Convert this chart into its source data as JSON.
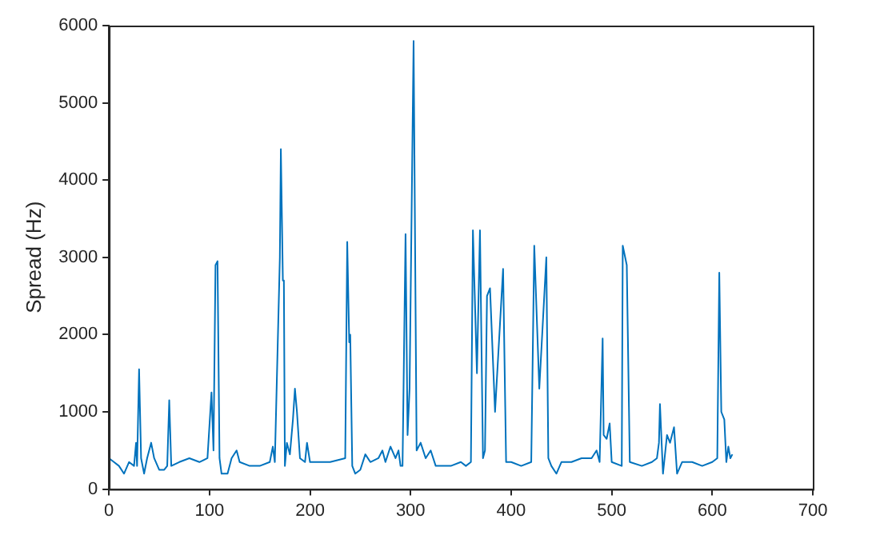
{
  "chart_data": {
    "type": "line",
    "ylabel": "Spread (Hz)",
    "x": [
      0,
      5,
      10,
      15,
      20,
      25,
      27,
      28,
      30,
      32,
      35,
      38,
      42,
      45,
      50,
      55,
      58,
      60,
      62,
      70,
      80,
      90,
      98,
      102,
      104,
      106,
      108,
      110,
      112,
      118,
      122,
      127,
      130,
      140,
      150,
      160,
      163,
      165,
      170,
      171,
      173,
      174,
      175,
      177,
      180,
      183,
      185,
      187,
      190,
      195,
      197,
      200,
      220,
      235,
      237,
      239,
      240,
      242,
      245,
      250,
      255,
      260,
      268,
      272,
      275,
      280,
      285,
      288,
      290,
      292,
      295,
      297,
      299,
      303,
      306,
      310,
      315,
      320,
      325,
      340,
      350,
      355,
      360,
      362,
      366,
      369,
      372,
      374,
      376,
      379,
      384,
      392,
      395,
      400,
      410,
      420,
      423,
      428,
      435,
      437,
      440,
      445,
      450,
      460,
      470,
      480,
      485,
      488,
      491,
      492,
      495,
      498,
      500,
      510,
      511,
      515,
      518,
      530,
      540,
      545,
      547,
      548,
      551,
      555,
      558,
      562,
      565,
      570,
      580,
      590,
      600,
      605,
      607,
      609,
      612,
      614,
      616,
      618,
      620
    ],
    "series": [
      {
        "color": "#0072bd",
        "values": [
          400,
          350,
          300,
          200,
          350,
          300,
          600,
          300,
          1550,
          400,
          200,
          400,
          600,
          400,
          250,
          250,
          300,
          1150,
          300,
          350,
          400,
          350,
          400,
          1250,
          500,
          2900,
          2950,
          400,
          200,
          200,
          400,
          500,
          350,
          300,
          300,
          350,
          550,
          350,
          3000,
          4400,
          2700,
          2700,
          300,
          600,
          450,
          900,
          1300,
          1000,
          400,
          350,
          600,
          350,
          350,
          400,
          3200,
          1900,
          2000,
          300,
          200,
          250,
          450,
          350,
          400,
          500,
          350,
          550,
          400,
          500,
          300,
          300,
          3300,
          700,
          1300,
          5800,
          500,
          600,
          400,
          500,
          300,
          300,
          350,
          300,
          350,
          3350,
          1500,
          3350,
          400,
          500,
          2500,
          2600,
          1000,
          2850,
          350,
          350,
          300,
          350,
          3150,
          1300,
          3000,
          400,
          300,
          200,
          350,
          350,
          400,
          400,
          500,
          350,
          1950,
          700,
          650,
          850,
          350,
          300,
          3150,
          2900,
          350,
          300,
          350,
          400,
          600,
          1100,
          200,
          700,
          600,
          800,
          200,
          350,
          350,
          300,
          350,
          400,
          2800,
          1000,
          900,
          350,
          550,
          400,
          450
        ]
      }
    ],
    "xlim": [
      0,
      700
    ],
    "xticks": [
      0,
      100,
      200,
      300,
      400,
      500,
      600,
      700
    ],
    "ylim": [
      0,
      6000
    ],
    "yticks": [
      0,
      1000,
      2000,
      3000,
      4000,
      5000,
      6000
    ],
    "grid": false,
    "legend": false
  }
}
